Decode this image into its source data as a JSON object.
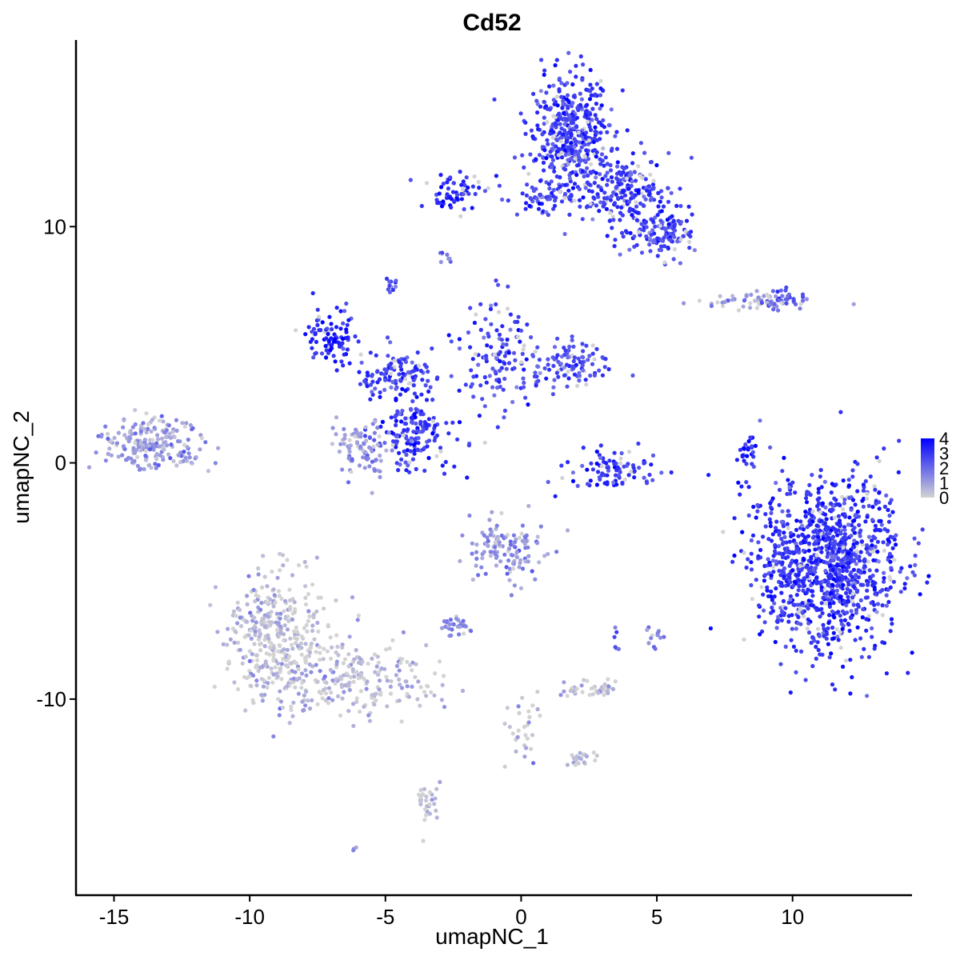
{
  "chart_data": {
    "type": "scatter",
    "title": "Cd52",
    "xlabel": "umapNC_1",
    "ylabel": "umapNC_2",
    "xlim": [
      -16.4,
      14.4
    ],
    "ylim": [
      -18.3,
      17.9
    ],
    "x_ticks": [
      -15,
      -10,
      -5,
      0,
      5,
      10
    ],
    "x_tick_labels": [
      "-15",
      "-10",
      "-5",
      "0",
      "5",
      "10"
    ],
    "y_ticks": [
      -10,
      0,
      10
    ],
    "y_tick_labels": [
      "-10",
      "0",
      "10"
    ],
    "grid": false,
    "legend_position": "right",
    "color_scale": {
      "low": "#d3d3d3",
      "high": "#0000ff",
      "min": 0,
      "max": 4,
      "ticks": [
        0,
        1,
        2,
        3,
        4
      ],
      "tick_labels": [
        "0",
        "1",
        "2",
        "3",
        "4"
      ]
    },
    "clusters": [
      {
        "x": 1.8,
        "y": 14.0,
        "sx": 0.8,
        "sy": 1.2,
        "n": 420,
        "expr": 2.8
      },
      {
        "x": 3.8,
        "y": 11.4,
        "sx": 1.0,
        "sy": 0.8,
        "n": 220,
        "expr": 2.9
      },
      {
        "x": 5.2,
        "y": 9.7,
        "sx": 0.6,
        "sy": 0.5,
        "n": 120,
        "expr": 2.7
      },
      {
        "x": -2.5,
        "y": 11.5,
        "sx": 0.5,
        "sy": 0.4,
        "n": 60,
        "expr": 3.1
      },
      {
        "x": 0.6,
        "y": 11.2,
        "sx": 0.9,
        "sy": 0.4,
        "n": 60,
        "expr": 2.6
      },
      {
        "x": -7.0,
        "y": 5.3,
        "sx": 0.5,
        "sy": 0.6,
        "n": 90,
        "expr": 3.2
      },
      {
        "x": -4.5,
        "y": 3.8,
        "sx": 0.9,
        "sy": 0.6,
        "n": 120,
        "expr": 2.9
      },
      {
        "x": -0.8,
        "y": 4.3,
        "sx": 0.7,
        "sy": 1.3,
        "n": 130,
        "expr": 2.8
      },
      {
        "x": 1.8,
        "y": 4.2,
        "sx": 0.7,
        "sy": 0.5,
        "n": 100,
        "expr": 2.5
      },
      {
        "x": -3.9,
        "y": 1.2,
        "sx": 0.6,
        "sy": 0.8,
        "n": 150,
        "expr": 3.0
      },
      {
        "x": -5.8,
        "y": 0.6,
        "sx": 0.5,
        "sy": 0.6,
        "n": 90,
        "expr": 1.3
      },
      {
        "x": 3.3,
        "y": -0.3,
        "sx": 0.9,
        "sy": 0.4,
        "n": 90,
        "expr": 3.0
      },
      {
        "x": -13.5,
        "y": 0.8,
        "sx": 1.0,
        "sy": 0.5,
        "n": 200,
        "expr": 1.0
      },
      {
        "x": 8.3,
        "y": 0.3,
        "sx": 0.2,
        "sy": 0.7,
        "n": 30,
        "expr": 3.3
      },
      {
        "x": 8.4,
        "y": 6.9,
        "sx": 0.9,
        "sy": 0.2,
        "n": 40,
        "expr": 1.0
      },
      {
        "x": 9.6,
        "y": 6.9,
        "sx": 0.4,
        "sy": 0.3,
        "n": 40,
        "expr": 2.1
      },
      {
        "x": 11.3,
        "y": -4.3,
        "sx": 1.3,
        "sy": 1.8,
        "n": 1100,
        "expr": 3.0
      },
      {
        "x": -0.6,
        "y": -3.7,
        "sx": 0.7,
        "sy": 0.7,
        "n": 120,
        "expr": 1.3
      },
      {
        "x": -9.0,
        "y": -7.5,
        "sx": 1.0,
        "sy": 1.4,
        "n": 380,
        "expr": 0.35
      },
      {
        "x": -5.8,
        "y": -9.2,
        "sx": 1.3,
        "sy": 0.8,
        "n": 200,
        "expr": 0.5
      },
      {
        "x": 2.5,
        "y": -9.6,
        "sx": 0.5,
        "sy": 0.2,
        "n": 40,
        "expr": 0.3
      },
      {
        "x": -2.5,
        "y": -6.9,
        "sx": 0.3,
        "sy": 0.2,
        "n": 30,
        "expr": 1.6
      },
      {
        "x": -3.5,
        "y": -14.5,
        "sx": 0.2,
        "sy": 0.5,
        "n": 30,
        "expr": 0.3
      },
      {
        "x": 0.0,
        "y": -11.5,
        "sx": 0.3,
        "sy": 0.9,
        "n": 30,
        "expr": 0.3
      },
      {
        "x": 2.2,
        "y": -12.5,
        "sx": 0.3,
        "sy": 0.2,
        "n": 20,
        "expr": 0.4
      },
      {
        "x": -4.8,
        "y": 7.5,
        "sx": 0.2,
        "sy": 0.2,
        "n": 12,
        "expr": 2.2
      },
      {
        "x": -2.9,
        "y": 8.7,
        "sx": 0.2,
        "sy": 0.15,
        "n": 8,
        "expr": 2.0
      },
      {
        "x": 5.0,
        "y": -7.3,
        "sx": 0.15,
        "sy": 0.3,
        "n": 12,
        "expr": 1.8
      },
      {
        "x": 3.5,
        "y": -7.5,
        "sx": 0.1,
        "sy": 0.3,
        "n": 6,
        "expr": 1.5
      },
      {
        "x": -6.1,
        "y": -16.3,
        "sx": 0.1,
        "sy": 0.1,
        "n": 3,
        "expr": 1.0
      }
    ]
  }
}
